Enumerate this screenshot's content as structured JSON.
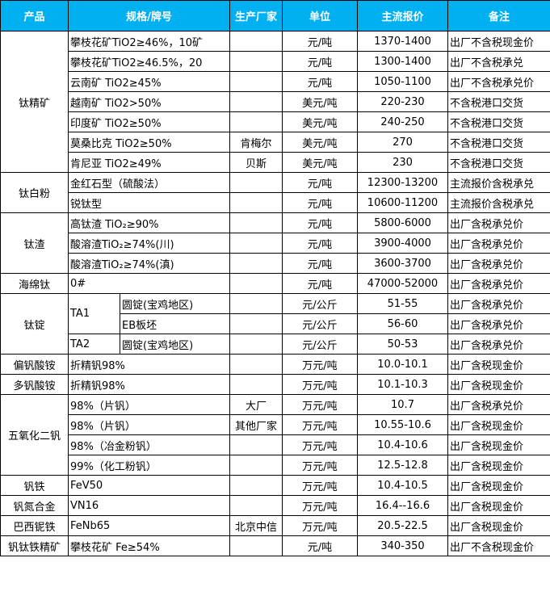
{
  "header": [
    "产品",
    "规格/牌号",
    "生产厂家",
    "单位",
    "主流报价",
    "备注"
  ],
  "groups": {
    "tjk": "钛精矿",
    "tbf": "钛白粉",
    "tz": "钛渣",
    "hmt": "海绵钛",
    "td": "钛锭",
    "ta1": "TA1",
    "ta2": "TA2",
    "pfsa": "偏钒酸铵",
    "dfsa": "多钒酸铵",
    "wyhef": "五氧化二钒",
    "ft": "钒铁",
    "fdhj": "钒氮合金",
    "bxnt": "巴西铌铁",
    "ftjk": "钒钛铁精矿"
  },
  "rows": [
    {
      "spec": "攀枝花矿TiO2≥46%，10矿",
      "maker": "",
      "unit": "元/吨",
      "price": "1370-1400",
      "note": "出厂不含税现金价"
    },
    {
      "spec": "攀枝花矿TiO2≥46.5%，20",
      "maker": "",
      "unit": "元/吨",
      "price": "1300-1400",
      "note": "出厂不含税承兑"
    },
    {
      "spec": "云南矿 TiO2≥45%",
      "maker": "",
      "unit": "元/吨",
      "price": "1050-1100",
      "note": "出厂不含税承兑价"
    },
    {
      "spec": "越南矿 TiO2>50%",
      "maker": "",
      "unit": "美元/吨",
      "price": "220-230",
      "note": "不含税港口交货"
    },
    {
      "spec": "印度矿 TiO2≥50%",
      "maker": "",
      "unit": "美元/吨",
      "price": "240-250",
      "note": "不含税港口交货"
    },
    {
      "spec": "莫桑比克 TiO2≥50%",
      "maker": "肯梅尔",
      "unit": "美元/吨",
      "price": "270",
      "note": "不含税港口交货"
    },
    {
      "spec": "肯尼亚 TiO2≥49%",
      "maker": "贝斯",
      "unit": "美元/吨",
      "price": "230",
      "note": "不含税港口交货"
    },
    {
      "spec": "金红石型（硫酸法）",
      "maker": "",
      "unit": "元/吨",
      "price": "12300-13200",
      "note": "主流报价含税承兑"
    },
    {
      "spec": "锐钛型",
      "maker": "",
      "unit": "元/吨",
      "price": "10600-11200",
      "note": "主流报价含税承兑"
    },
    {
      "spec": "高钛渣 TiO₂≥90%",
      "maker": "",
      "unit": "元/吨",
      "price": "5800-6000",
      "note": "出厂含税承兑价"
    },
    {
      "spec": "酸溶渣TiO₂≥74%(川)",
      "maker": "",
      "unit": "元/吨",
      "price": "3900-4000",
      "note": "出厂含税承兑价"
    },
    {
      "spec": "酸溶渣TiO₂≥74%(滇)",
      "maker": "",
      "unit": "元/吨",
      "price": "3600-3700",
      "note": "出厂含税承兑价"
    },
    {
      "spec": "0#",
      "maker": "",
      "unit": "元/吨",
      "price": "47000-52000",
      "note": "出厂含税承兑价"
    },
    {
      "spec": "圆锭(宝鸡地区)",
      "maker": "",
      "unit": "元/公斤",
      "price": "51-55",
      "note": "出厂含税承兑价"
    },
    {
      "spec": "EB板坯",
      "maker": "",
      "unit": "元/公斤",
      "price": "56-60",
      "note": "出厂含税承兑价"
    },
    {
      "spec": "圆锭(宝鸡地区)",
      "maker": "",
      "unit": "元/公斤",
      "price": "50-53",
      "note": "出厂含税承兑价"
    },
    {
      "spec": "折精钒98%",
      "maker": "",
      "unit": "万元/吨",
      "price": "10.0-10.1",
      "note": "出厂含税现金价"
    },
    {
      "spec": "折精钒98%",
      "maker": "",
      "unit": "万元/吨",
      "price": "10.1-10.3",
      "note": "出厂含税现金价"
    },
    {
      "spec": "98%（片钒）",
      "maker": "大厂",
      "unit": "万元/吨",
      "price": "10.7",
      "note": "出厂含税承兑价"
    },
    {
      "spec": "98%（片钒）",
      "maker": "其他厂家",
      "unit": "万元/吨",
      "price": "10.55-10.6",
      "note": "出厂含税现金价"
    },
    {
      "spec": "98%（冶金粉钒）",
      "maker": "",
      "unit": "万元/吨",
      "price": "10.4-10.6",
      "note": "出厂含税现金价"
    },
    {
      "spec": "99%（化工粉钒）",
      "maker": "",
      "unit": "万元/吨",
      "price": "12.5-12.8",
      "note": "出厂含税现金价"
    },
    {
      "spec": "FeV50",
      "maker": "",
      "unit": "万元/吨",
      "price": "10.4-10.5",
      "note": "出厂含税现金价"
    },
    {
      "spec": "VN16",
      "maker": "",
      "unit": "万元/吨",
      "price": "16.4--16.6",
      "note": "出厂含税现金价"
    },
    {
      "spec": "FeNb65",
      "maker": "北京中信",
      "unit": "万元/吨",
      "price": "20.5-22.5",
      "note": "出厂含税现金价"
    },
    {
      "spec": "攀枝花矿 Fe≥54%",
      "maker": "",
      "unit": "元/吨",
      "price": "340-350",
      "note": "出厂不含税现金价"
    }
  ]
}
